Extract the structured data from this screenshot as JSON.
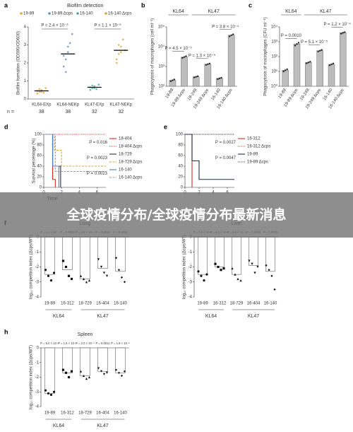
{
  "chart_data": [
    {
      "type": "strip",
      "panel": "a",
      "title": "Biofilm detection",
      "ylabel": "Biofilm formation (OD590/OD600)",
      "categories": [
        "KL64-EXp",
        "KL64-NEKp",
        "KL47-EXp",
        "KL47-NEKp"
      ],
      "colors": [
        "#e8a33b",
        "#5b8fc7",
        "#4aa7a0",
        "#d9a441"
      ],
      "legend": [
        {
          "name": "19-89",
          "color": "#e8a33b"
        },
        {
          "name": "19-89 Δcps",
          "color": "#5b8fc7"
        },
        {
          "name": "16-140",
          "color": "#4aa7a0"
        },
        {
          "name": "16-140 Δcps",
          "color": "#d9a441"
        }
      ],
      "values": [
        0.45,
        2.5,
        0.65,
        2.7
      ],
      "points": [
        [
          0.3,
          0.4,
          0.5,
          0.35,
          0.6,
          0.45,
          0.55,
          0.4
        ],
        [
          1.8,
          2.2,
          2.6,
          3.1,
          3.6,
          2.4,
          1.5,
          2.9
        ],
        [
          0.5,
          0.6,
          0.7,
          0.55,
          0.8,
          0.65,
          0.75,
          0.6
        ],
        [
          2.0,
          2.5,
          2.9,
          3.3,
          2.7,
          2.2,
          3.0,
          2.6
        ]
      ],
      "ylim": [
        0,
        4
      ],
      "yticks": [
        0,
        1,
        2,
        3,
        4
      ],
      "annotations": [
        "P = 2.4 × 10⁻⁹",
        "P = 1.1 × 10⁻⁵"
      ],
      "n_label": "n =",
      "n": [
        38,
        38,
        32,
        32
      ]
    },
    {
      "type": "bar",
      "panel": "b",
      "ylabel": "Phagocytosis of macrophages (cell ml⁻¹)",
      "log": true,
      "color": "#bdbdbd",
      "categories": [
        "19-89",
        "19-89 Δcps",
        "19-249",
        "19-249 Δcps",
        "16-140",
        "16-140 Δcps"
      ],
      "groups": [
        {
          "name": "KL64",
          "size": 2
        },
        {
          "name": "KL47",
          "size": 4
        }
      ],
      "values": [
        200,
        3000,
        300,
        1300,
        250,
        38000
      ],
      "points": [
        [
          180,
          200,
          220
        ],
        [
          2700,
          3000,
          3300
        ],
        [
          280,
          300,
          320
        ],
        [
          1200,
          1300,
          1400
        ],
        [
          230,
          250,
          270
        ],
        [
          33000,
          38000,
          42000
        ]
      ],
      "ylim": [
        100,
        100000
      ],
      "yticks": [
        {
          "value": 100,
          "label": "10²"
        },
        {
          "value": 1000,
          "label": "10³"
        },
        {
          "value": 10000,
          "label": "10⁴"
        },
        {
          "value": 100000,
          "label": "10⁵"
        }
      ],
      "annotations": [
        "P = 4.5 × 10⁻⁹",
        "P = 1.3 × 10⁻⁵",
        "P = 3.8 × 10⁻⁴"
      ]
    },
    {
      "type": "bar",
      "panel": "c",
      "ylabel": "Phagocytosis of macrophages (CFU ml⁻¹)",
      "log": true,
      "color": "#bdbdbd",
      "categories": [
        "19-89",
        "19-89 Δcps",
        "19-249",
        "19-249 Δcps",
        "16-140",
        "16-140 Δcps"
      ],
      "groups": [
        {
          "name": "KL64",
          "size": 2
        },
        {
          "name": "KL47",
          "size": 4
        }
      ],
      "values": [
        12,
        700,
        40,
        250,
        30,
        4000
      ],
      "points": [
        [
          10,
          12,
          14
        ],
        [
          550,
          700,
          850
        ],
        [
          35,
          40,
          45
        ],
        [
          220,
          250,
          280
        ],
        [
          26,
          30,
          34
        ],
        [
          3500,
          4000,
          4400
        ]
      ],
      "ylim": [
        1,
        10000
      ],
      "yticks": [
        {
          "value": 1,
          "label": "10⁰"
        },
        {
          "value": 10,
          "label": "10¹"
        },
        {
          "value": 100,
          "label": "10²"
        },
        {
          "value": 1000,
          "label": "10³"
        },
        {
          "value": 10000,
          "label": "10⁴"
        }
      ],
      "annotations": [
        "P = 0.0010",
        "P = 5.1 × 10⁻⁵",
        "P = 1.2 × 10⁻⁴"
      ]
    },
    {
      "type": "survival",
      "panel": "d",
      "ylabel": "Survival percentage (%)",
      "xlabel": "Time",
      "xlim": [
        0,
        7
      ],
      "xticks": [
        0,
        2,
        4,
        6
      ],
      "ylim": [
        0,
        100
      ],
      "yticks": [
        0,
        20,
        40,
        60,
        80,
        100
      ],
      "series": [
        {
          "name": "18-404",
          "color": "#d62728",
          "style": "solid",
          "x": [
            0,
            1,
            1,
            1.3,
            1.3
          ],
          "values": [
            100,
            100,
            15,
            15,
            0
          ]
        },
        {
          "name": "18-404 Δcps",
          "color": "#d62728",
          "style": "dotted",
          "x": [
            0,
            7
          ],
          "values": [
            100,
            100
          ]
        },
        {
          "name": "18-729",
          "color": "#1f2d4f",
          "style": "solid",
          "x": [
            0,
            1,
            1,
            1.9,
            1.9
          ],
          "values": [
            100,
            100,
            40,
            40,
            0
          ]
        },
        {
          "name": "18-729 Δcps",
          "color": "#d9a441",
          "style": "dashed",
          "x": [
            0,
            1.2,
            1.2,
            2,
            2,
            7
          ],
          "values": [
            100,
            100,
            70,
            70,
            40,
            40
          ]
        },
        {
          "name": "16-140",
          "color": "#4f7fc0",
          "style": "solid",
          "x": [
            0,
            1,
            1,
            1.7,
            1.7
          ],
          "values": [
            100,
            100,
            40,
            40,
            0
          ]
        },
        {
          "name": "16-140 Δcps",
          "color": "#999999",
          "style": "dashed",
          "x": [
            0,
            1.3,
            1.3,
            7
          ],
          "values": [
            100,
            100,
            30,
            30
          ]
        }
      ],
      "annotations": [
        "P = 0.016",
        "P = 0.0023",
        "P = 0.0023"
      ]
    },
    {
      "type": "survival",
      "panel": "e",
      "xlim": [
        0,
        7
      ],
      "xticks": [
        0,
        2,
        4,
        6
      ],
      "ylim": [
        0,
        100
      ],
      "yticks": [
        0,
        20,
        40,
        60,
        80,
        100
      ],
      "series": [
        {
          "name": "16-312",
          "color": "#d62728",
          "style": "solid",
          "x": [
            0,
            1,
            1
          ],
          "values": [
            100,
            100,
            0
          ]
        },
        {
          "name": "16-312 Δcps",
          "color": "#d62728",
          "style": "dotted",
          "x": [
            0,
            7
          ],
          "values": [
            100,
            100
          ]
        },
        {
          "name": "19-89",
          "color": "#1f2d4f",
          "style": "solid",
          "x": [
            0,
            1,
            1,
            2,
            2,
            7
          ],
          "values": [
            100,
            100,
            50,
            50,
            15,
            15
          ]
        },
        {
          "name": "19-89 Δcps",
          "color": "#1f2d4f",
          "style": "dotted",
          "x": [
            0,
            7
          ],
          "values": [
            100,
            100
          ]
        }
      ],
      "annotations": [
        "P = 0.0027",
        "P = 0.0047"
      ]
    },
    {
      "type": "competition",
      "panel": "f",
      "title": "Lung",
      "ylabel": "log₁₀ competition index (Δcps/WT)",
      "categories": [
        "19-89",
        "16-312",
        "18-729",
        "16-404",
        "16-140"
      ],
      "groups": [
        {
          "name": "KL64",
          "size": 2
        },
        {
          "name": "KL47",
          "size": 3
        }
      ],
      "values": [
        -2.5,
        -2.2,
        -2.8,
        -2.1,
        -2.3
      ],
      "points": [
        [
          -2.2,
          -2.6,
          -2.9,
          -2.4
        ],
        [
          -1.6,
          -2.0,
          -2.6,
          -2.8
        ],
        [
          -2.6,
          -2.8,
          -3.0,
          -2.9
        ],
        [
          -1.5,
          -2.0,
          -2.4,
          -2.6
        ],
        [
          -1.4,
          -2.2,
          -2.7,
          -3.0
        ]
      ],
      "ylim": [
        -4,
        0
      ],
      "yticks": [
        0,
        -1,
        -2,
        -3,
        -4
      ],
      "annotations": [
        "P = 1.1 × 10⁻⁴",
        "P = 0.0023",
        "P = 2.8 × 10⁻⁵",
        "P = 0.0019",
        "P = 0.0083"
      ]
    },
    {
      "type": "competition",
      "title": "Liver",
      "ylabel": "log₁₀ competition index (Δcps/WT)",
      "categories": [
        "19-89",
        "16-312",
        "18-729",
        "16-404",
        "16-140"
      ],
      "groups": [
        {
          "name": "KL64",
          "size": 2
        },
        {
          "name": "KL47",
          "size": 3
        }
      ],
      "values": [
        -2.5,
        -2.0,
        -2.5,
        -1.9,
        -2.3
      ],
      "points": [
        [
          -2.3,
          -2.6,
          -2.9,
          -2.5
        ],
        [
          -1.8,
          -2.0,
          -2.2,
          -2.1
        ],
        [
          -2.1,
          -2.5,
          -2.8,
          -2.9
        ],
        [
          -1.6,
          -1.8,
          -2.4,
          -2.0
        ],
        [
          -1.9,
          -2.2,
          -2.6,
          -3.5
        ]
      ],
      "ylim": [
        -4,
        0
      ],
      "yticks": [
        0,
        -1,
        -2,
        -3,
        -4
      ],
      "annotations": [
        "P = 7.2 × 10⁻⁵",
        "P = 4.3 × 10⁻⁵",
        "P = 3.8 × 10⁻⁴",
        "P = 0.0026",
        "P = 0.0029"
      ]
    },
    {
      "type": "competition",
      "panel": "h",
      "title": "Spleen",
      "ylabel": "log₁₀ competition index (Δcps/WT)",
      "categories": [
        "19-89",
        "16-312",
        "18-729",
        "16-404",
        "16-140"
      ],
      "groups": [
        {
          "name": "KL64",
          "size": 2
        },
        {
          "name": "KL47",
          "size": 3
        }
      ],
      "values": [
        -3.1,
        -1.7,
        -1.9,
        -1.6,
        -1.7
      ],
      "points": [
        [
          -2.9,
          -3.1,
          -3.2,
          -3.0
        ],
        [
          -1.5,
          -1.7,
          -2.0,
          -1.6
        ],
        [
          -1.6,
          -1.9,
          -2.1,
          -2.0
        ],
        [
          -1.4,
          -1.6,
          -1.8,
          -1.7
        ],
        [
          -1.5,
          -1.7,
          -1.9,
          -1.6
        ]
      ],
      "ylim": [
        -4,
        0
      ],
      "yticks": [
        0,
        -1,
        -2,
        -3,
        -4
      ],
      "annotations": [
        "P = 5.0 × 10⁻⁵",
        "P = 1.5 × 10⁻⁵",
        "P = 2.0 × 10⁻⁵",
        "P = 0.0011",
        "P = 1.9 × 10⁻⁵"
      ]
    }
  ],
  "banner": "全球疫情分布/全球疫情分布最新消息"
}
